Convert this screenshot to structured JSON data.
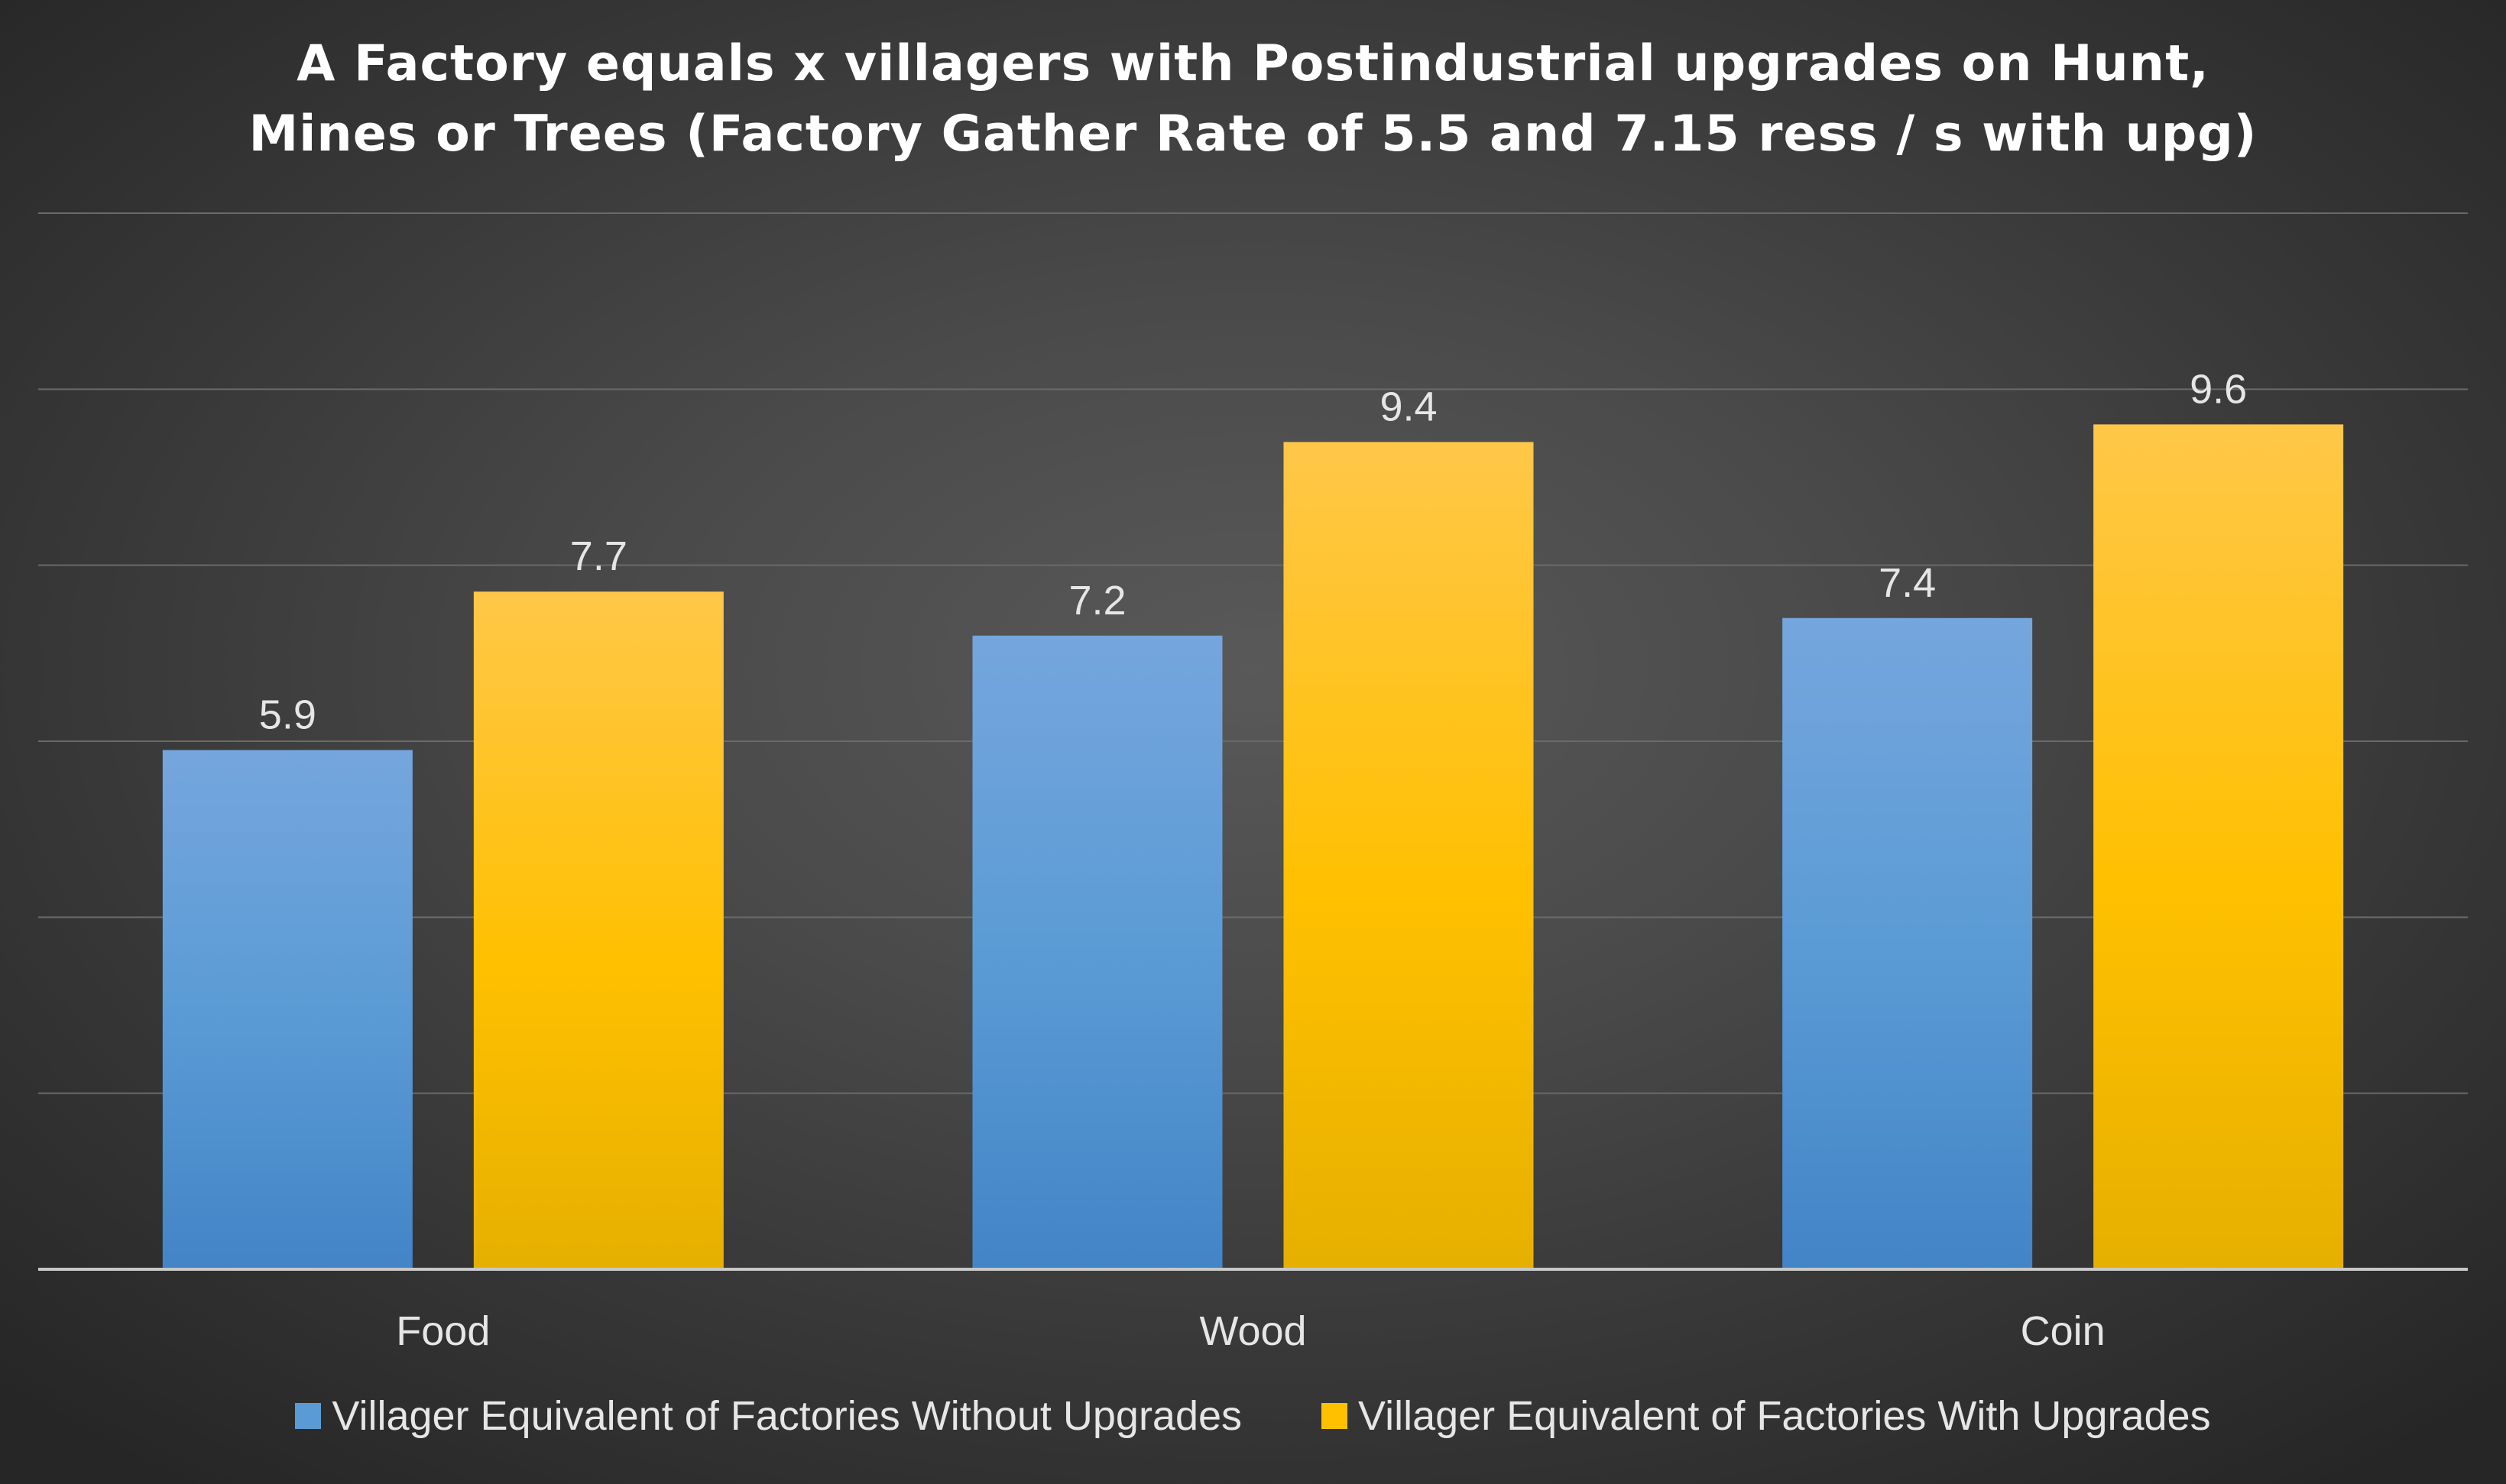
{
  "chart_data": {
    "type": "bar",
    "title_lines": [
      "A Factory equals x villagers with Postindustrial upgrades on Hunt,",
      "Mines or Trees (Factory Gather Rate of 5.5 and 7.15 ress / s with upg)"
    ],
    "categories": [
      "Food",
      "Wood",
      "Coin"
    ],
    "series": [
      {
        "name": "Villager Equivalent of Factories Without Upgrades",
        "values": [
          5.9,
          7.2,
          7.4
        ],
        "labels": [
          "5.9",
          "7.2",
          "7.4"
        ],
        "color": "#5b9bd5"
      },
      {
        "name": "Villager Equivalent of Factories With Upgrades",
        "values": [
          7.7,
          9.4,
          9.6
        ],
        "labels": [
          "7.7",
          "9.4",
          "9.6"
        ],
        "color": "#ffc000"
      }
    ],
    "ylim": [
      0,
      12
    ],
    "y_gridlines": [
      2,
      4,
      6,
      8,
      10,
      12
    ],
    "y_tick_labels_shown": false,
    "grid": true,
    "legend_position": "bottom"
  }
}
